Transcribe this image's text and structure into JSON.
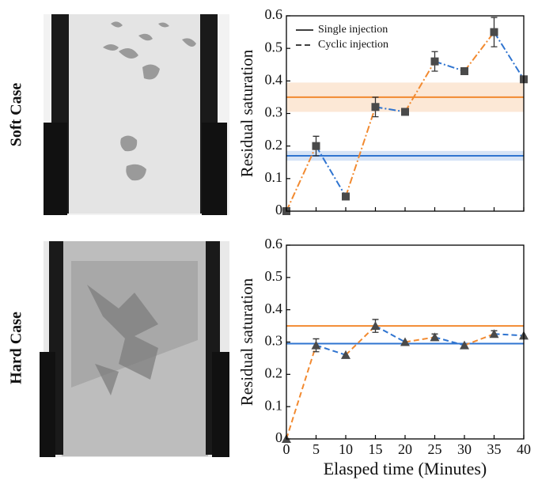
{
  "row_labels": [
    "Soft Case",
    "Hard Case"
  ],
  "chart_data": [
    {
      "type": "line",
      "ylabel": "Residual saturation",
      "x": [
        0,
        5,
        10,
        15,
        20,
        25,
        30,
        35,
        40
      ],
      "series": [
        {
          "values": [
            0,
            0.2,
            0.045,
            0.32,
            0.305,
            0.46,
            0.43,
            0.55,
            0.405
          ],
          "errors": [
            null,
            0.03,
            null,
            0.03,
            null,
            0.03,
            null,
            0.045,
            null
          ],
          "marker": "square",
          "line_style": "dashdot",
          "segment_colors": [
            "#f28a30",
            "#2f74d0"
          ]
        }
      ],
      "hlines": [
        {
          "value": 0.35,
          "band": [
            0.305,
            0.395
          ],
          "color": "#f28a30"
        },
        {
          "value": 0.17,
          "band": [
            0.155,
            0.185
          ],
          "color": "#2f74d0"
        }
      ],
      "legend": [
        {
          "label": "Single injection",
          "style": "solid"
        },
        {
          "label": "Cyclic injection",
          "style": "dashed"
        }
      ],
      "xlim": [
        0,
        40
      ],
      "xticks": [
        0,
        5,
        10,
        15,
        20,
        25,
        30,
        35,
        40
      ],
      "xtick_labels": false,
      "ylim": [
        0,
        0.6
      ],
      "yticks": [
        0,
        0.1,
        0.2,
        0.3,
        0.4,
        0.5,
        0.6
      ]
    },
    {
      "type": "line",
      "ylabel": "Residual saturation",
      "xlabel": "Elasped time (Minutes)",
      "x": [
        0,
        5,
        10,
        15,
        20,
        25,
        30,
        35,
        40
      ],
      "series": [
        {
          "values": [
            0,
            0.29,
            0.26,
            0.35,
            0.3,
            0.315,
            0.29,
            0.325,
            0.32
          ],
          "errors": [
            null,
            0.02,
            null,
            0.02,
            null,
            0.01,
            null,
            0.01,
            null
          ],
          "marker": "triangle",
          "line_style": "dashed",
          "segment_colors": [
            "#f28a30",
            "#2f74d0"
          ]
        }
      ],
      "hlines": [
        {
          "value": 0.35,
          "color": "#f28a30"
        },
        {
          "value": 0.295,
          "color": "#2f74d0"
        }
      ],
      "xlim": [
        0,
        40
      ],
      "xticks": [
        0,
        5,
        10,
        15,
        20,
        25,
        30,
        35,
        40
      ],
      "xtick_labels": true,
      "ylim": [
        0,
        0.6
      ],
      "yticks": [
        0,
        0.1,
        0.2,
        0.3,
        0.4,
        0.5,
        0.6
      ]
    }
  ]
}
